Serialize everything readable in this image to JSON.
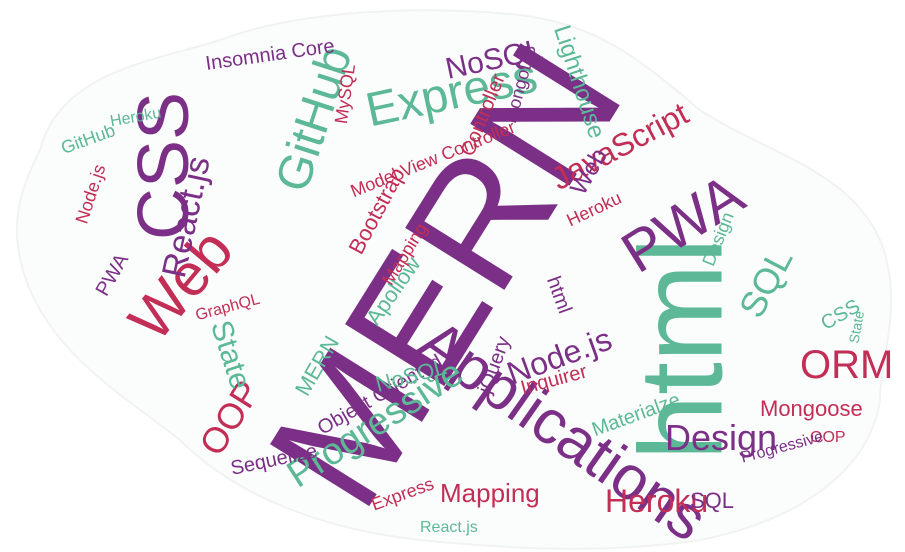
{
  "colors": {
    "purple": "#7b2f86",
    "green": "#5cb896",
    "red": "#c22e55"
  },
  "words": {
    "mern": "MERN",
    "html": "html",
    "applications": "Applications",
    "css": "CSS",
    "pwa": "PWA",
    "web": "Web",
    "express": "Express",
    "github": "GitHub",
    "progressive": "Progressive",
    "react_js": "React.js",
    "javascript": "JavaScript",
    "nosql": "NoSQL",
    "sql": "SQL",
    "orm": "ORM",
    "design": "Design",
    "node_js": "Node.js",
    "heroku": "Heroku",
    "oop": "OOP",
    "state": "State",
    "mapping": "Mapping",
    "mongoose": "Mongoose",
    "lighthouse": "Lighthouse",
    "insomnia_core": "Insomnia Core",
    "model_view_controller": "Model View Controller",
    "object_oriented": "Object Oriented",
    "mongodb": "MongoDB",
    "materialize": "Materialze",
    "sequelize": "Sequelize",
    "bootstrap": "Bootstrap",
    "jquery": "jQuery",
    "graphql": "GraphQL",
    "mysql": "MySQL",
    "apollow": "Apollow",
    "inquirer": "Inquirer",
    "controller": "Controller",
    "mapping_html": "html"
  }
}
